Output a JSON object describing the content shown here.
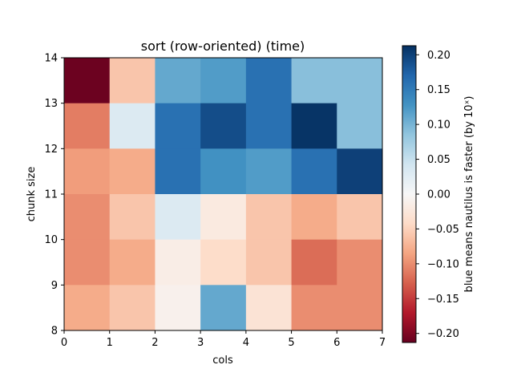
{
  "chart_data": {
    "type": "heatmap",
    "title": "sort (row-oriented) (time)",
    "xlabel": "cols",
    "ylabel": "chunk size",
    "colorbar_label": "blue means nautilus is faster (by 10ˣ)",
    "colormap": "RdBu",
    "x_ticks": [
      "0",
      "1",
      "2",
      "3",
      "4",
      "5",
      "6",
      "7"
    ],
    "y_ticks": [
      "8",
      "9",
      "10",
      "11",
      "12",
      "13",
      "14"
    ],
    "xlim": [
      0,
      7
    ],
    "ylim": [
      8,
      14
    ],
    "clim": [
      -0.213,
      0.213
    ],
    "colorbar_ticks": [
      "−0.20",
      "−0.15",
      "−0.10",
      "−0.05",
      "0.00",
      "0.05",
      "0.10",
      "0.15",
      "0.20"
    ],
    "colorbar_tick_values": [
      -0.2,
      -0.15,
      -0.1,
      -0.05,
      0.0,
      0.05,
      0.1,
      0.15,
      0.2
    ],
    "rows_top_to_bottom": [
      {
        "y_range": [
          13,
          14
        ],
        "values": [
          -0.21,
          -0.06,
          0.11,
          0.12,
          0.16,
          0.09,
          0.09
        ]
      },
      {
        "y_range": [
          12,
          13
        ],
        "values": [
          -0.11,
          0.03,
          0.16,
          0.19,
          0.16,
          0.21,
          0.09
        ]
      },
      {
        "y_range": [
          11,
          12
        ],
        "values": [
          -0.09,
          -0.08,
          0.16,
          0.13,
          0.12,
          0.16,
          0.2
        ]
      },
      {
        "y_range": [
          10,
          11
        ],
        "values": [
          -0.1,
          -0.06,
          0.03,
          -0.02,
          -0.06,
          -0.08,
          -0.06
        ]
      },
      {
        "y_range": [
          9,
          10
        ],
        "values": [
          -0.1,
          -0.08,
          -0.015,
          -0.04,
          -0.06,
          -0.12,
          -0.1
        ]
      },
      {
        "y_range": [
          8,
          9
        ],
        "values": [
          -0.08,
          -0.06,
          -0.01,
          0.11,
          -0.03,
          -0.1,
          -0.1
        ]
      }
    ]
  }
}
